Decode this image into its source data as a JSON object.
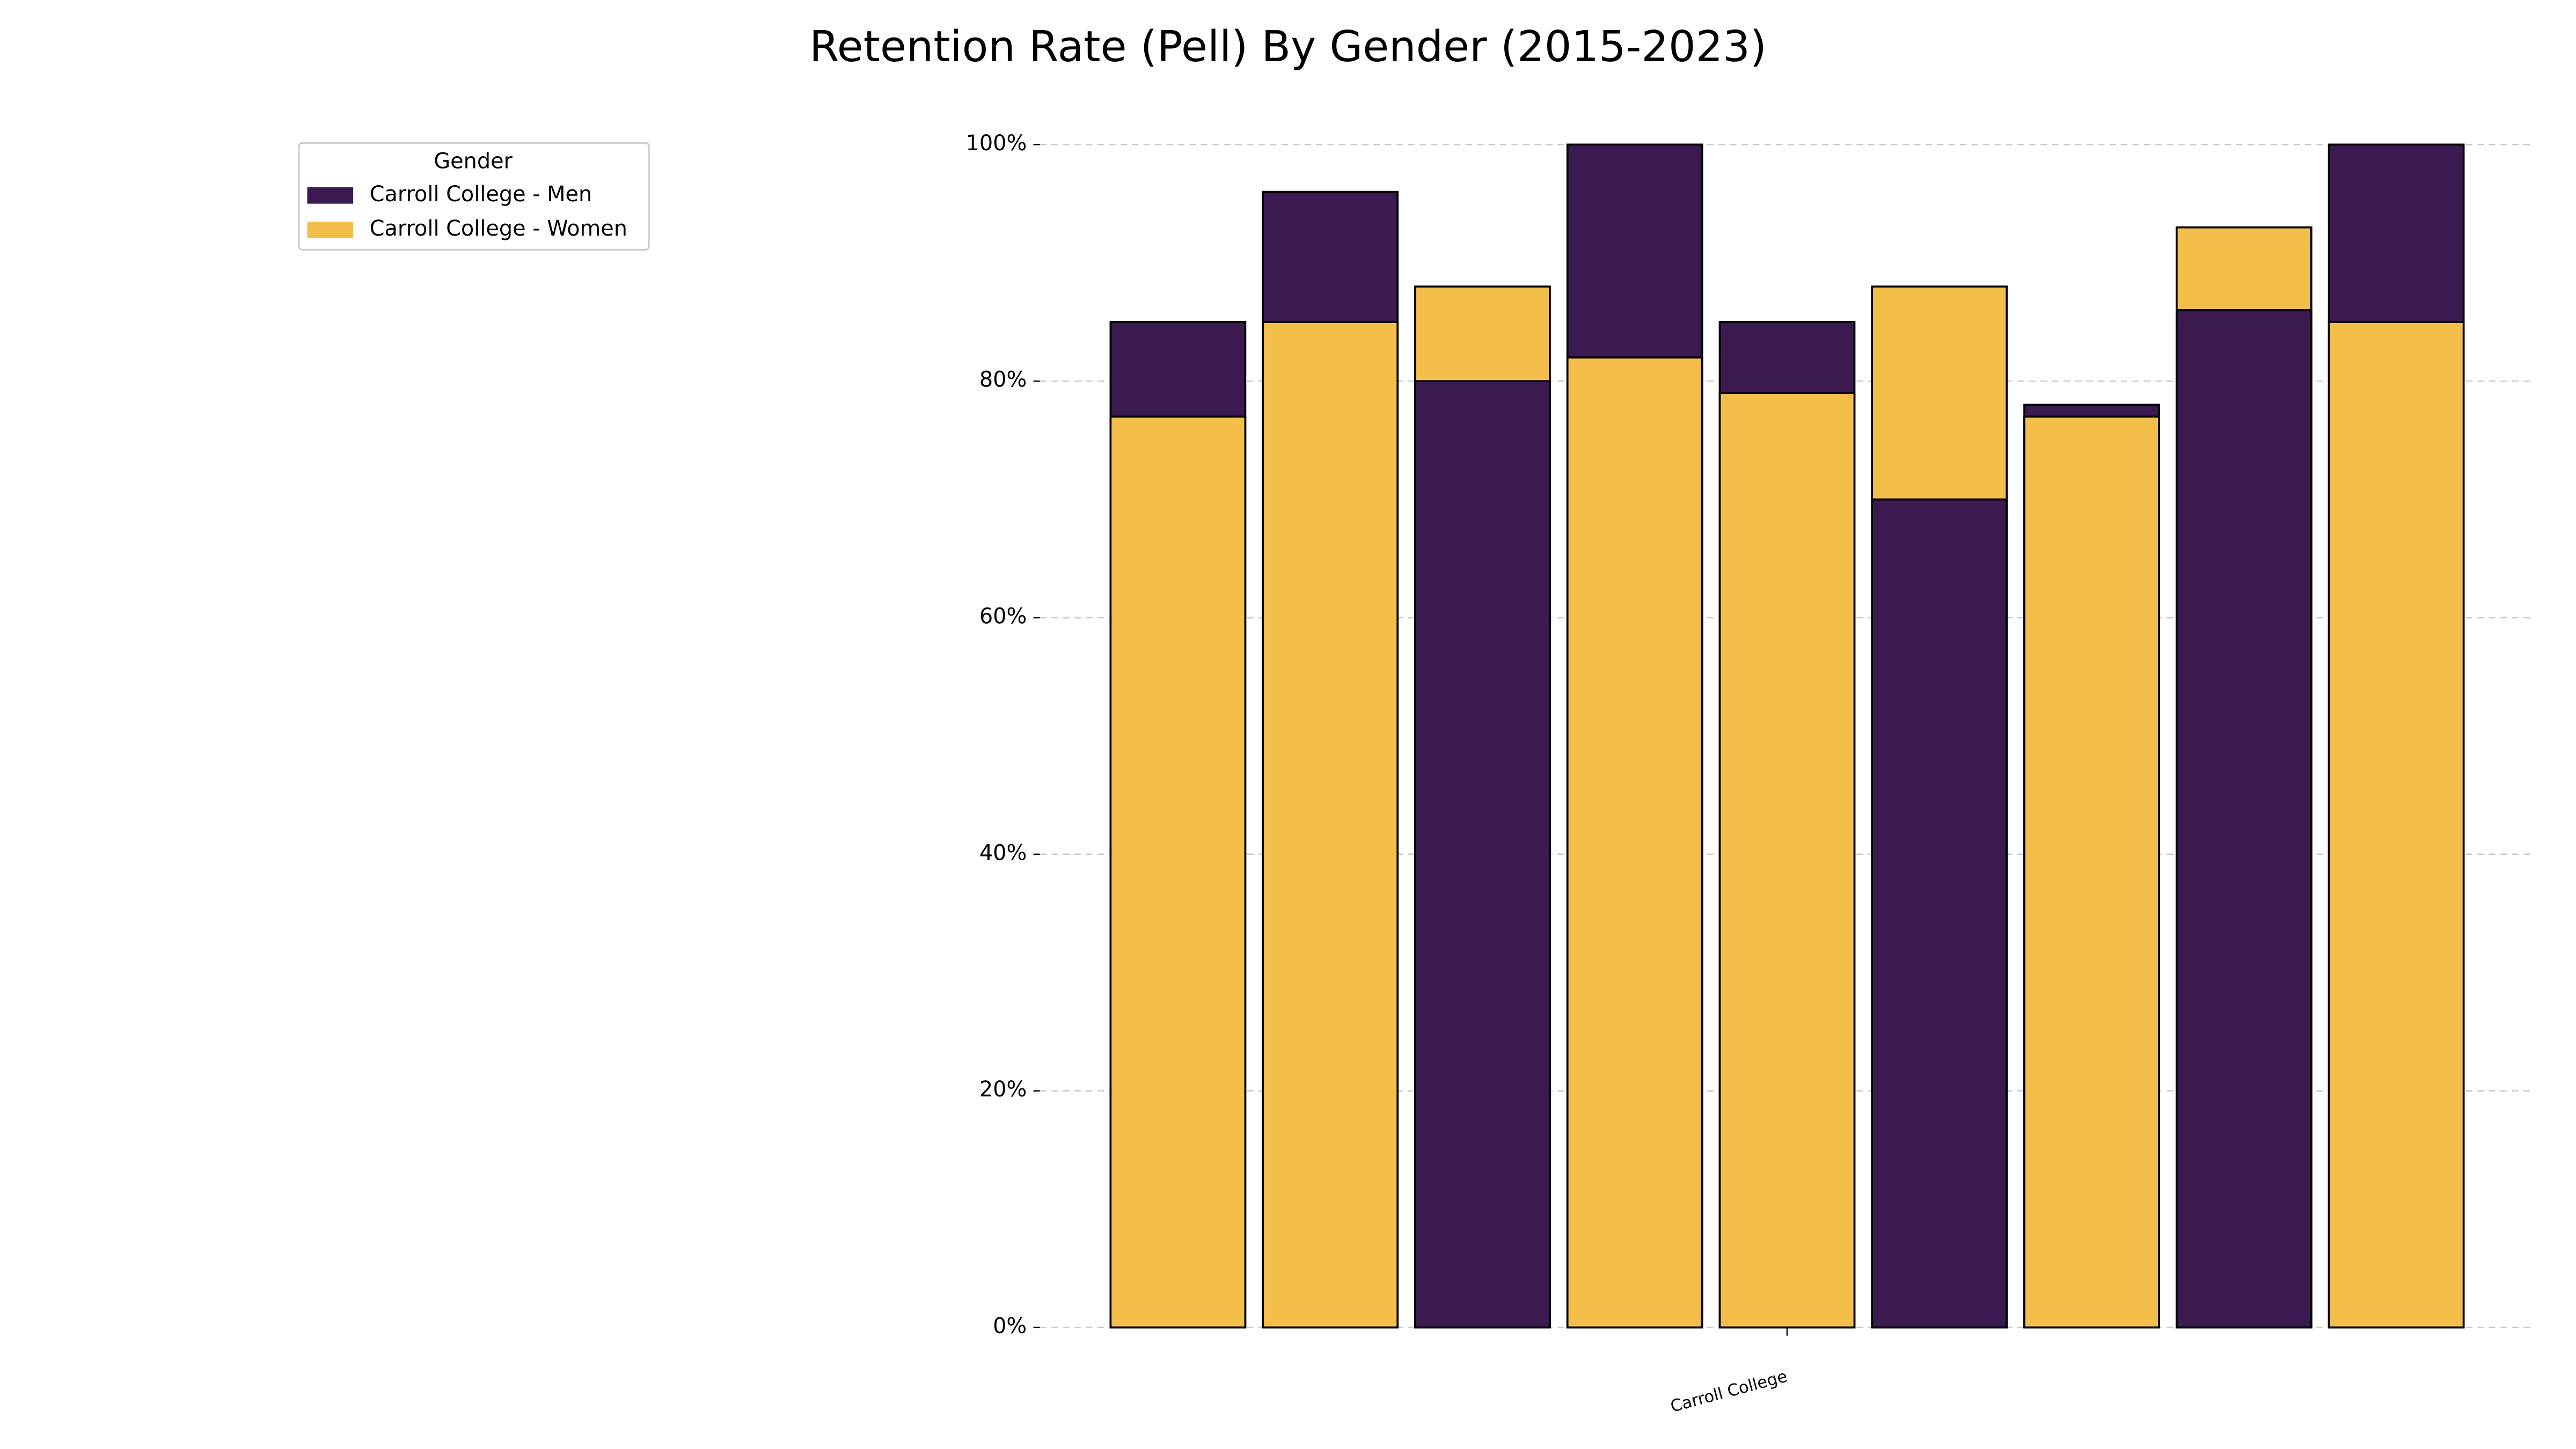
{
  "chart_data": {
    "type": "overlap_bar",
    "title": "Retention Rate (Pell) By Gender (2015-2023)",
    "categories": [
      null,
      null,
      null,
      null,
      null,
      null,
      null,
      null,
      null
    ],
    "group_label": "Carroll College",
    "legend_title": "Gender",
    "legend": "upper left",
    "series": [
      {
        "name": "Carroll College - Men",
        "color": "#3b1951",
        "values": [
          85,
          96,
          80,
          100,
          85,
          70,
          78,
          86,
          100
        ]
      },
      {
        "name": "Carroll College - Women",
        "color": "#f3be4a",
        "values": [
          77,
          85,
          88,
          82,
          79,
          88,
          77,
          93,
          85
        ]
      }
    ],
    "ylim": [
      0,
      100
    ],
    "yticks": [
      {
        "value": 0,
        "label": "0%"
      },
      {
        "value": 20,
        "label": "20%"
      },
      {
        "value": 40,
        "label": "40%"
      },
      {
        "value": 60,
        "label": "60%"
      },
      {
        "value": 80,
        "label": "80%"
      },
      {
        "value": 100,
        "label": "100%"
      }
    ],
    "grid": true
  }
}
